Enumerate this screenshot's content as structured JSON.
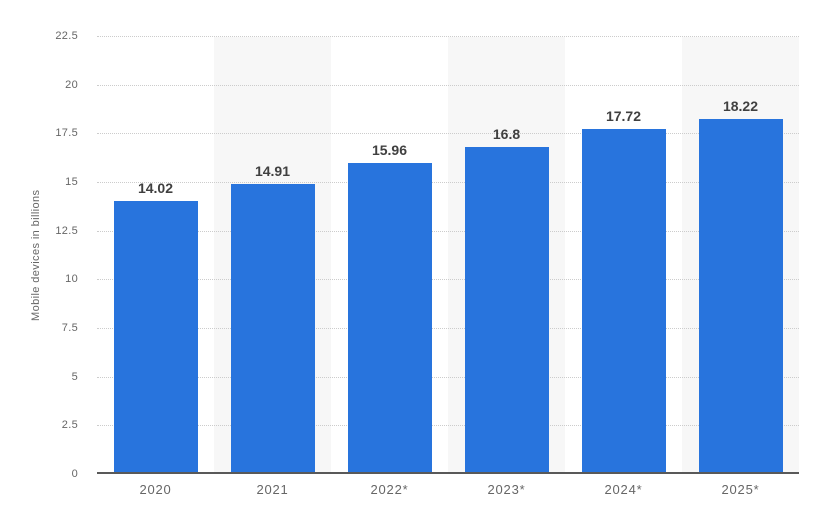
{
  "chart_data": {
    "type": "bar",
    "title": "",
    "xlabel": "",
    "ylabel": "Mobile devices in billions",
    "categories": [
      "2020",
      "2021",
      "2022*",
      "2023*",
      "2024*",
      "2025*"
    ],
    "values": [
      14.02,
      14.91,
      15.96,
      16.8,
      17.72,
      18.22
    ],
    "value_labels": [
      "14.02",
      "14.91",
      "15.96",
      "16.8",
      "17.72",
      "18.22"
    ],
    "ylim": [
      0,
      22.5
    ],
    "yticks": [
      0,
      2.5,
      5,
      7.5,
      10,
      12.5,
      15,
      17.5,
      20,
      22.5
    ],
    "ytick_labels": [
      "0",
      "2.5",
      "5",
      "7.5",
      "10",
      "12.5",
      "15",
      "17.5",
      "20",
      "22.5"
    ],
    "grid": true,
    "gridline_style": "dotted",
    "legend": false,
    "plot_bands_alternate_on_odd_columns": true,
    "colors": {
      "bar": "#2874dd",
      "band": "#f7f7f7",
      "gridline": "#cccccc",
      "baseline": "#595959",
      "value_label": "#404040",
      "tick_label": "#666666",
      "background": "#ffffff"
    }
  }
}
